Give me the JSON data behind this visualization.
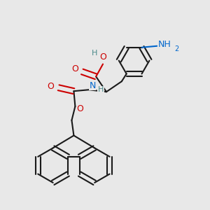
{
  "bg_color": "#e8e8e8",
  "bond_color": "#1a1a1a",
  "bond_width": 1.5,
  "o_color": "#cc0000",
  "n_color": "#0066cc",
  "h_color": "#4a8a8a",
  "figsize": [
    3.0,
    3.0
  ],
  "dpi": 100,
  "xlim": [
    0,
    3.0
  ],
  "ylim": [
    0,
    3.0
  ]
}
